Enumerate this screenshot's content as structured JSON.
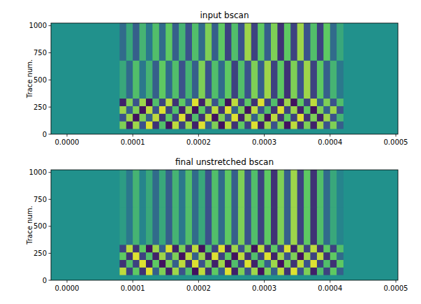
{
  "chart_data": [
    {
      "type": "heatmap",
      "title": "input bscan",
      "ylabel": "Trace num.",
      "xlim": [
        -2.44e-05,
        0.0005032
      ],
      "ylim": [
        0,
        1024
      ],
      "xticks": [
        {
          "value": 0,
          "label": "0.0000"
        },
        {
          "value": 0.0001,
          "label": "0.0001"
        },
        {
          "value": 0.0002,
          "label": "0.0002"
        },
        {
          "value": 0.0003,
          "label": "0.0003"
        },
        {
          "value": 0.0004,
          "label": "0.0004"
        },
        {
          "value": 0.0005,
          "label": "0.0005"
        }
      ],
      "yticks": [
        0,
        250,
        500,
        750,
        1000
      ],
      "color_range": [
        -1,
        1
      ],
      "x_bins": [
        8e-05,
        9e-05,
        0.0001,
        0.00011,
        0.00012,
        0.00013,
        0.00014,
        0.00015,
        0.00016,
        0.00017,
        0.00018,
        0.00019,
        0.0002,
        0.00021,
        0.00022,
        0.00023,
        0.00024,
        0.00025,
        0.00026,
        0.00027,
        0.00028,
        0.00029,
        0.0003,
        0.00031,
        0.00032,
        0.00033,
        0.00034,
        0.00035,
        0.00036,
        0.00037,
        0.00038,
        0.00039,
        0.0004,
        0.00041,
        0.00042
      ],
      "y_bins": [
        50,
        120,
        190,
        260,
        330,
        680,
        1024
      ],
      "cells": [
        [
          0.6,
          -0.8,
          0.7,
          -0.5,
          0.9,
          -0.7,
          0.4,
          -0.9,
          0.8,
          -0.6,
          0.7,
          -0.8,
          0.9,
          -0.4,
          0.6,
          -0.9,
          0.8,
          -0.7,
          0.5,
          -0.6,
          0.9,
          -0.8,
          0.7,
          -0.5,
          0.6,
          -0.9,
          0.8,
          -0.7,
          0.6,
          -0.8,
          0.7,
          -0.5,
          0.6,
          -0.4
        ],
        [
          -0.5,
          0.7,
          -0.9,
          0.6,
          -0.4,
          0.8,
          -0.7,
          0.5,
          -0.6,
          0.9,
          -0.8,
          0.4,
          -0.7,
          0.8,
          -0.9,
          0.6,
          -0.5,
          0.9,
          -0.8,
          0.7,
          -0.4,
          0.6,
          -0.9,
          0.8,
          -0.7,
          0.5,
          -0.6,
          0.9,
          -0.7,
          0.6,
          -0.8,
          0.7,
          -0.5,
          0.3
        ],
        [
          0.7,
          -0.4,
          0.6,
          -0.9,
          0.8,
          -0.5,
          0.9,
          -0.6,
          0.4,
          -0.8,
          0.7,
          -0.9,
          0.5,
          -0.6,
          0.8,
          -0.7,
          0.9,
          -0.4,
          0.6,
          -0.9,
          0.8,
          -0.5,
          0.4,
          -0.7,
          0.9,
          -0.6,
          0.7,
          -0.8,
          0.5,
          -0.9,
          0.6,
          -0.4,
          0.7,
          -0.5
        ],
        [
          -0.8,
          0.6,
          -0.5,
          0.7,
          -0.9,
          0.4,
          -0.6,
          0.8,
          -0.7,
          0.5,
          -0.4,
          0.9,
          -0.8,
          0.7,
          -0.5,
          0.4,
          -0.9,
          0.8,
          -0.6,
          0.5,
          -0.7,
          0.9,
          -0.6,
          0.4,
          -0.8,
          0.7,
          -0.9,
          0.5,
          -0.6,
          0.8,
          -0.4,
          0.6,
          -0.5,
          0.4
        ],
        [
          0.2,
          -0.3,
          0.4,
          -0.2,
          0.3,
          -0.4,
          0.5,
          -0.3,
          0.4,
          -0.5,
          0.3,
          -0.4,
          0.6,
          -0.5,
          0.4,
          -0.3,
          0.5,
          -0.6,
          0.4,
          -0.5,
          0.6,
          -0.4,
          0.7,
          -0.6,
          0.5,
          -0.7,
          0.6,
          -0.5,
          0.7,
          -0.6,
          0.5,
          -0.4,
          0.3,
          -0.2
        ],
        [
          -0.3,
          0.2,
          -0.4,
          0.3,
          -0.2,
          0.4,
          -0.3,
          0.5,
          -0.4,
          0.3,
          -0.5,
          0.4,
          -0.3,
          0.6,
          -0.4,
          0.5,
          -0.6,
          0.4,
          -0.5,
          0.7,
          -0.6,
          0.5,
          -0.4,
          0.6,
          -0.7,
          0.5,
          -0.6,
          0.7,
          -0.5,
          0.4,
          -0.6,
          0.5,
          -0.3,
          0.2
        ]
      ]
    },
    {
      "type": "heatmap",
      "title": "final unstretched bscan",
      "ylabel": "Trace num.",
      "xlim": [
        -2.44e-05,
        0.0005032
      ],
      "ylim": [
        0,
        1024
      ],
      "xticks": [
        {
          "value": 0,
          "label": "0.0000"
        },
        {
          "value": 0.0001,
          "label": "0.0001"
        },
        {
          "value": 0.0002,
          "label": "0.0002"
        },
        {
          "value": 0.0003,
          "label": "0.0003"
        },
        {
          "value": 0.0004,
          "label": "0.0004"
        },
        {
          "value": 0.0005,
          "label": "0.0005"
        }
      ],
      "yticks": [
        0,
        250,
        500,
        750,
        1000
      ],
      "color_range": [
        -1,
        1
      ],
      "x_bins": [
        8e-05,
        9e-05,
        0.0001,
        0.00011,
        0.00012,
        0.00013,
        0.00014,
        0.00015,
        0.00016,
        0.00017,
        0.00018,
        0.00019,
        0.0002,
        0.00021,
        0.00022,
        0.00023,
        0.00024,
        0.00025,
        0.00026,
        0.00027,
        0.00028,
        0.00029,
        0.0003,
        0.00031,
        0.00032,
        0.00033,
        0.00034,
        0.00035,
        0.00036,
        0.00037,
        0.00038,
        0.00039,
        0.0004,
        0.00041,
        0.00042
      ],
      "y_bins": [
        50,
        120,
        190,
        260,
        330,
        680,
        1024
      ],
      "cells": [
        [
          0.8,
          -0.6,
          0.5,
          -0.7,
          0.9,
          -0.4,
          0.6,
          -0.8,
          0.7,
          -0.5,
          0.4,
          -0.9,
          0.8,
          -0.7,
          0.5,
          -0.4,
          0.9,
          -0.8,
          0.6,
          -0.5,
          0.7,
          -0.9,
          0.6,
          -0.4,
          0.8,
          -0.7,
          0.9,
          -0.5,
          0.6,
          -0.8,
          0.4,
          -0.6,
          0.5,
          -0.4
        ],
        [
          -0.7,
          0.4,
          -0.6,
          0.9,
          -0.8,
          0.5,
          -0.9,
          0.6,
          -0.4,
          0.8,
          -0.7,
          0.9,
          -0.5,
          0.6,
          -0.8,
          0.7,
          -0.9,
          0.4,
          -0.6,
          0.9,
          -0.8,
          0.5,
          -0.4,
          0.7,
          -0.9,
          0.6,
          -0.7,
          0.8,
          -0.5,
          0.9,
          -0.6,
          0.4,
          -0.7,
          0.5
        ],
        [
          0.5,
          -0.7,
          0.9,
          -0.6,
          0.4,
          -0.8,
          0.7,
          -0.5,
          0.6,
          -0.9,
          0.8,
          -0.4,
          0.7,
          -0.8,
          0.9,
          -0.6,
          0.5,
          -0.9,
          0.8,
          -0.7,
          0.4,
          -0.6,
          0.9,
          -0.8,
          0.7,
          -0.5,
          0.6,
          -0.9,
          0.7,
          -0.6,
          0.8,
          -0.7,
          0.5,
          -0.3
        ],
        [
          -0.6,
          0.8,
          -0.7,
          0.5,
          -0.9,
          0.7,
          -0.4,
          0.9,
          -0.8,
          0.6,
          -0.7,
          0.8,
          -0.9,
          0.4,
          -0.6,
          0.9,
          -0.8,
          0.7,
          -0.5,
          0.6,
          -0.9,
          0.8,
          -0.7,
          0.5,
          -0.6,
          0.9,
          -0.8,
          0.7,
          -0.6,
          0.8,
          -0.7,
          0.5,
          -0.6,
          0.4
        ],
        [
          0.1,
          -0.2,
          0.3,
          -0.1,
          0.2,
          -0.3,
          0.2,
          -0.4,
          0.3,
          -0.2,
          0.4,
          -0.3,
          0.2,
          -0.5,
          0.4,
          -0.3,
          0.5,
          -0.4,
          0.6,
          -0.5,
          0.4,
          -0.6,
          0.5,
          -0.7,
          0.6,
          -0.4,
          0.7,
          -0.6,
          0.5,
          -0.7,
          0.4,
          -0.3,
          0.2,
          -0.1
        ],
        [
          0.1,
          -0.2,
          0.3,
          -0.1,
          0.2,
          -0.3,
          0.2,
          -0.4,
          0.3,
          -0.2,
          0.4,
          -0.3,
          0.2,
          -0.5,
          0.4,
          -0.3,
          0.5,
          -0.4,
          0.6,
          -0.5,
          0.4,
          -0.6,
          0.5,
          -0.7,
          0.6,
          -0.4,
          0.7,
          -0.6,
          0.5,
          -0.7,
          0.4,
          -0.3,
          0.2,
          -0.1
        ]
      ]
    }
  ]
}
